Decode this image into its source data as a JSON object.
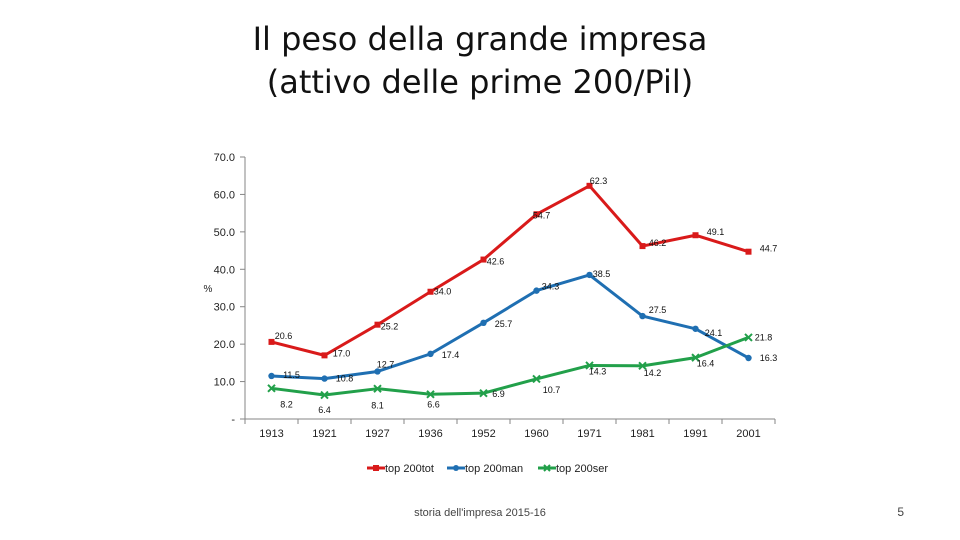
{
  "slide": {
    "title_line1": "Il peso della grande impresa",
    "title_line2": "(attivo delle prime 200/Pil)",
    "footer": "storia dell'impresa 2015-16",
    "page_number": "5"
  },
  "chart_data": {
    "type": "line",
    "title": "",
    "ylabel": "%",
    "ylim": [
      0,
      70
    ],
    "yticks": [
      "-",
      "10.0",
      "20.0",
      "30.0",
      "40.0",
      "50.0",
      "60.0",
      "70.0"
    ],
    "categories": [
      "1913",
      "1921",
      "1927",
      "1936",
      "1952",
      "1960",
      "1971",
      "1981",
      "1991",
      "2001"
    ],
    "grid": false,
    "legend": "bottom",
    "series": [
      {
        "name": "top 200tot",
        "color": "#d91a1a",
        "marker": "square",
        "values": [
          20.6,
          17.0,
          25.2,
          34.0,
          42.6,
          54.7,
          62.3,
          46.2,
          49.1,
          44.7
        ],
        "labels": [
          "20.6",
          "17.0",
          "25.2",
          "34.0",
          "42.6",
          "54.7",
          "62.3",
          "46.2",
          "49.1",
          "44.7"
        ]
      },
      {
        "name": "top 200man",
        "color": "#1f6fb2",
        "marker": "circle",
        "values": [
          11.5,
          10.8,
          12.7,
          17.4,
          25.7,
          34.3,
          38.5,
          27.5,
          24.1,
          16.3
        ],
        "labels": [
          "11.5",
          "10.8",
          "12.7",
          "17.4",
          "25.7",
          "34.3",
          "38.5",
          "27.5",
          "24.1",
          "16.3"
        ]
      },
      {
        "name": "top 200ser",
        "color": "#22a04a",
        "marker": "x",
        "values": [
          8.2,
          6.4,
          8.1,
          6.6,
          6.9,
          10.7,
          14.3,
          14.2,
          16.4,
          21.8
        ],
        "labels": [
          "8.2",
          "6.4",
          "8.1",
          "6.6",
          "6.9",
          "10.7",
          "14.3",
          "14.2",
          "16.4",
          "21.8"
        ]
      }
    ]
  }
}
